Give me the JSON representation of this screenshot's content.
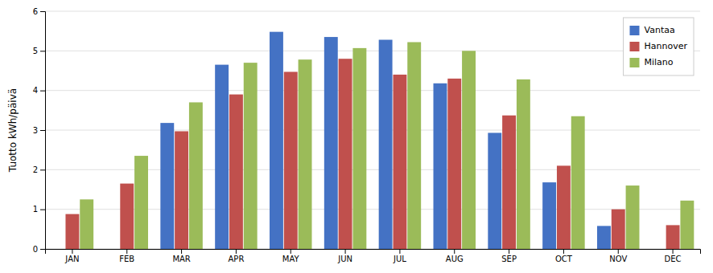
{
  "chart_data": {
    "type": "bar",
    "ylabel": "Tuotto kWh/päivä",
    "categories": [
      "JAN",
      "FEB",
      "MAR",
      "APR",
      "MAY",
      "JUN",
      "JUL",
      "AUG",
      "SEP",
      "OCT",
      "NOV",
      "DEC"
    ],
    "series": [
      {
        "name": "Vantaa",
        "color": "#4472C4",
        "values": [
          0.0,
          0.0,
          3.18,
          4.65,
          5.48,
          5.35,
          5.28,
          4.18,
          2.93,
          1.68,
          0.58,
          0.0
        ]
      },
      {
        "name": "Hannover",
        "color": "#C0504D",
        "values": [
          0.88,
          1.65,
          2.97,
          3.9,
          4.47,
          4.8,
          4.4,
          4.3,
          3.37,
          2.1,
          1.0,
          0.6
        ]
      },
      {
        "name": "Milano",
        "color": "#9BBB59",
        "values": [
          1.25,
          2.35,
          3.7,
          4.7,
          4.78,
          5.07,
          5.22,
          5.0,
          4.28,
          3.35,
          1.6,
          1.22
        ]
      }
    ],
    "ylim": [
      0,
      6
    ],
    "yticks": [
      0,
      1,
      2,
      3,
      4,
      5,
      6
    ],
    "grid": true,
    "legend": "upper right"
  }
}
